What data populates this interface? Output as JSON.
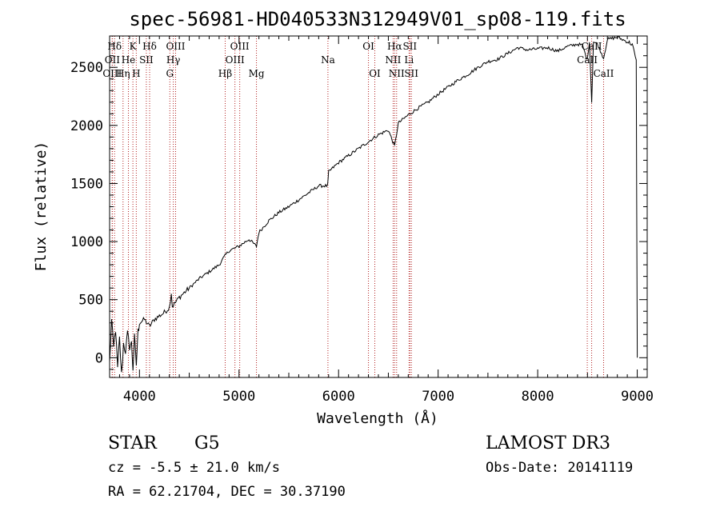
{
  "chart_data": {
    "type": "line",
    "title": "spec-56981-HD040533N312949V01_sp08-119.fits",
    "xlabel": "Wavelength (Å)",
    "ylabel": "Flux (relative)",
    "xlim": [
      3700,
      9100
    ],
    "ylim": [
      -170,
      2770
    ],
    "x_ticks": [
      4000,
      5000,
      6000,
      7000,
      8000,
      9000
    ],
    "y_ticks": [
      0,
      500,
      1000,
      1500,
      2000,
      2500
    ],
    "series": [
      {
        "name": "spectrum",
        "color": "#000000",
        "anchors": [
          [
            3700,
            -50
          ],
          [
            3720,
            320
          ],
          [
            3740,
            80
          ],
          [
            3760,
            250
          ],
          [
            3780,
            -100
          ],
          [
            3800,
            160
          ],
          [
            3820,
            -150
          ],
          [
            3840,
            120
          ],
          [
            3860,
            60
          ],
          [
            3880,
            200
          ],
          [
            3900,
            100
          ],
          [
            3920,
            120
          ],
          [
            3935,
            -90
          ],
          [
            3950,
            170
          ],
          [
            3968,
            -60
          ],
          [
            3985,
            220
          ],
          [
            4000,
            300
          ],
          [
            4050,
            330
          ],
          [
            4100,
            270
          ],
          [
            4150,
            330
          ],
          [
            4200,
            360
          ],
          [
            4250,
            390
          ],
          [
            4300,
            430
          ],
          [
            4320,
            560
          ],
          [
            4330,
            440
          ],
          [
            4400,
            520
          ],
          [
            4500,
            600
          ],
          [
            4600,
            680
          ],
          [
            4700,
            740
          ],
          [
            4800,
            800
          ],
          [
            4861,
            880
          ],
          [
            4900,
            920
          ],
          [
            5000,
            960
          ],
          [
            5100,
            1020
          ],
          [
            5175,
            960
          ],
          [
            5200,
            1080
          ],
          [
            5300,
            1180
          ],
          [
            5400,
            1250
          ],
          [
            5500,
            1300
          ],
          [
            5600,
            1360
          ],
          [
            5700,
            1420
          ],
          [
            5800,
            1480
          ],
          [
            5890,
            1480
          ],
          [
            5900,
            1600
          ],
          [
            6000,
            1680
          ],
          [
            6100,
            1740
          ],
          [
            6200,
            1800
          ],
          [
            6300,
            1860
          ],
          [
            6400,
            1920
          ],
          [
            6500,
            1960
          ],
          [
            6563,
            1820
          ],
          [
            6600,
            2020
          ],
          [
            6700,
            2090
          ],
          [
            6800,
            2150
          ],
          [
            6900,
            2200
          ],
          [
            7000,
            2270
          ],
          [
            7100,
            2330
          ],
          [
            7200,
            2390
          ],
          [
            7300,
            2440
          ],
          [
            7400,
            2500
          ],
          [
            7500,
            2550
          ],
          [
            7600,
            2570
          ],
          [
            7700,
            2620
          ],
          [
            7800,
            2670
          ],
          [
            7900,
            2650
          ],
          [
            8000,
            2660
          ],
          [
            8100,
            2670
          ],
          [
            8200,
            2640
          ],
          [
            8300,
            2680
          ],
          [
            8400,
            2700
          ],
          [
            8450,
            2690
          ],
          [
            8498,
            2560
          ],
          [
            8520,
            2730
          ],
          [
            8542,
            2200
          ],
          [
            8560,
            2720
          ],
          [
            8600,
            2700
          ],
          [
            8662,
            2580
          ],
          [
            8700,
            2740
          ],
          [
            8800,
            2760
          ],
          [
            8900,
            2720
          ],
          [
            8950,
            2700
          ],
          [
            8990,
            2550
          ],
          [
            9000,
            0
          ]
        ]
      }
    ],
    "spectral_lines": [
      {
        "label": "Hδ",
        "row": 1,
        "wavelength": 3750
      },
      {
        "label": "K",
        "row": 1,
        "wavelength": 3934
      },
      {
        "label": "Hδ",
        "row": 1,
        "wavelength": 4102
      },
      {
        "label": "OIII",
        "row": 1,
        "wavelength": 4363
      },
      {
        "label": "OIII",
        "row": 1,
        "wavelength": 5007
      },
      {
        "label": "OI",
        "row": 1,
        "wavelength": 6300
      },
      {
        "label": "Hα",
        "row": 1,
        "wavelength": 6563
      },
      {
        "label": "SII",
        "row": 1,
        "wavelength": 6716
      },
      {
        "label": "CaII",
        "row": 1,
        "wavelength": 8542
      },
      {
        "label": "OII",
        "row": 2,
        "wavelength": 3727
      },
      {
        "label": "He",
        "row": 2,
        "wavelength": 3889
      },
      {
        "label": "SII",
        "row": 2,
        "wavelength": 4069
      },
      {
        "label": "Hγ",
        "row": 2,
        "wavelength": 4340
      },
      {
        "label": "OIII",
        "row": 2,
        "wavelength": 4959
      },
      {
        "label": "Na",
        "row": 2,
        "wavelength": 5893
      },
      {
        "label": "NII",
        "row": 2,
        "wavelength": 6548
      },
      {
        "label": "Li",
        "row": 2,
        "wavelength": 6708
      },
      {
        "label": "CaII",
        "row": 2,
        "wavelength": 8498
      },
      {
        "label": "OIII",
        "row": 3,
        "wavelength": 3727
      },
      {
        "label": "Hη",
        "row": 3,
        "wavelength": 3835
      },
      {
        "label": "H",
        "row": 3,
        "wavelength": 3968
      },
      {
        "label": "G",
        "row": 3,
        "wavelength": 4305
      },
      {
        "label": "Hβ",
        "row": 3,
        "wavelength": 4861
      },
      {
        "label": "Mg",
        "row": 3,
        "wavelength": 5175
      },
      {
        "label": "OI",
        "row": 3,
        "wavelength": 6364
      },
      {
        "label": "NII",
        "row": 3,
        "wavelength": 6583
      },
      {
        "label": "SII",
        "row": 3,
        "wavelength": 6731
      },
      {
        "label": "CaII",
        "row": 3,
        "wavelength": 8662
      }
    ],
    "annotations": {
      "object_class": "STAR",
      "subclass": "G5",
      "survey": "LAMOST DR3",
      "redshift": "cz = -5.5 ± 21.0 km/s",
      "obs_date": "Obs-Date: 20141119",
      "coordinates": "RA =  62.21704, DEC =  30.37190"
    }
  },
  "colors": {
    "line_marker": "#b22222",
    "spectrum": "#000000",
    "axes": "#000000"
  }
}
